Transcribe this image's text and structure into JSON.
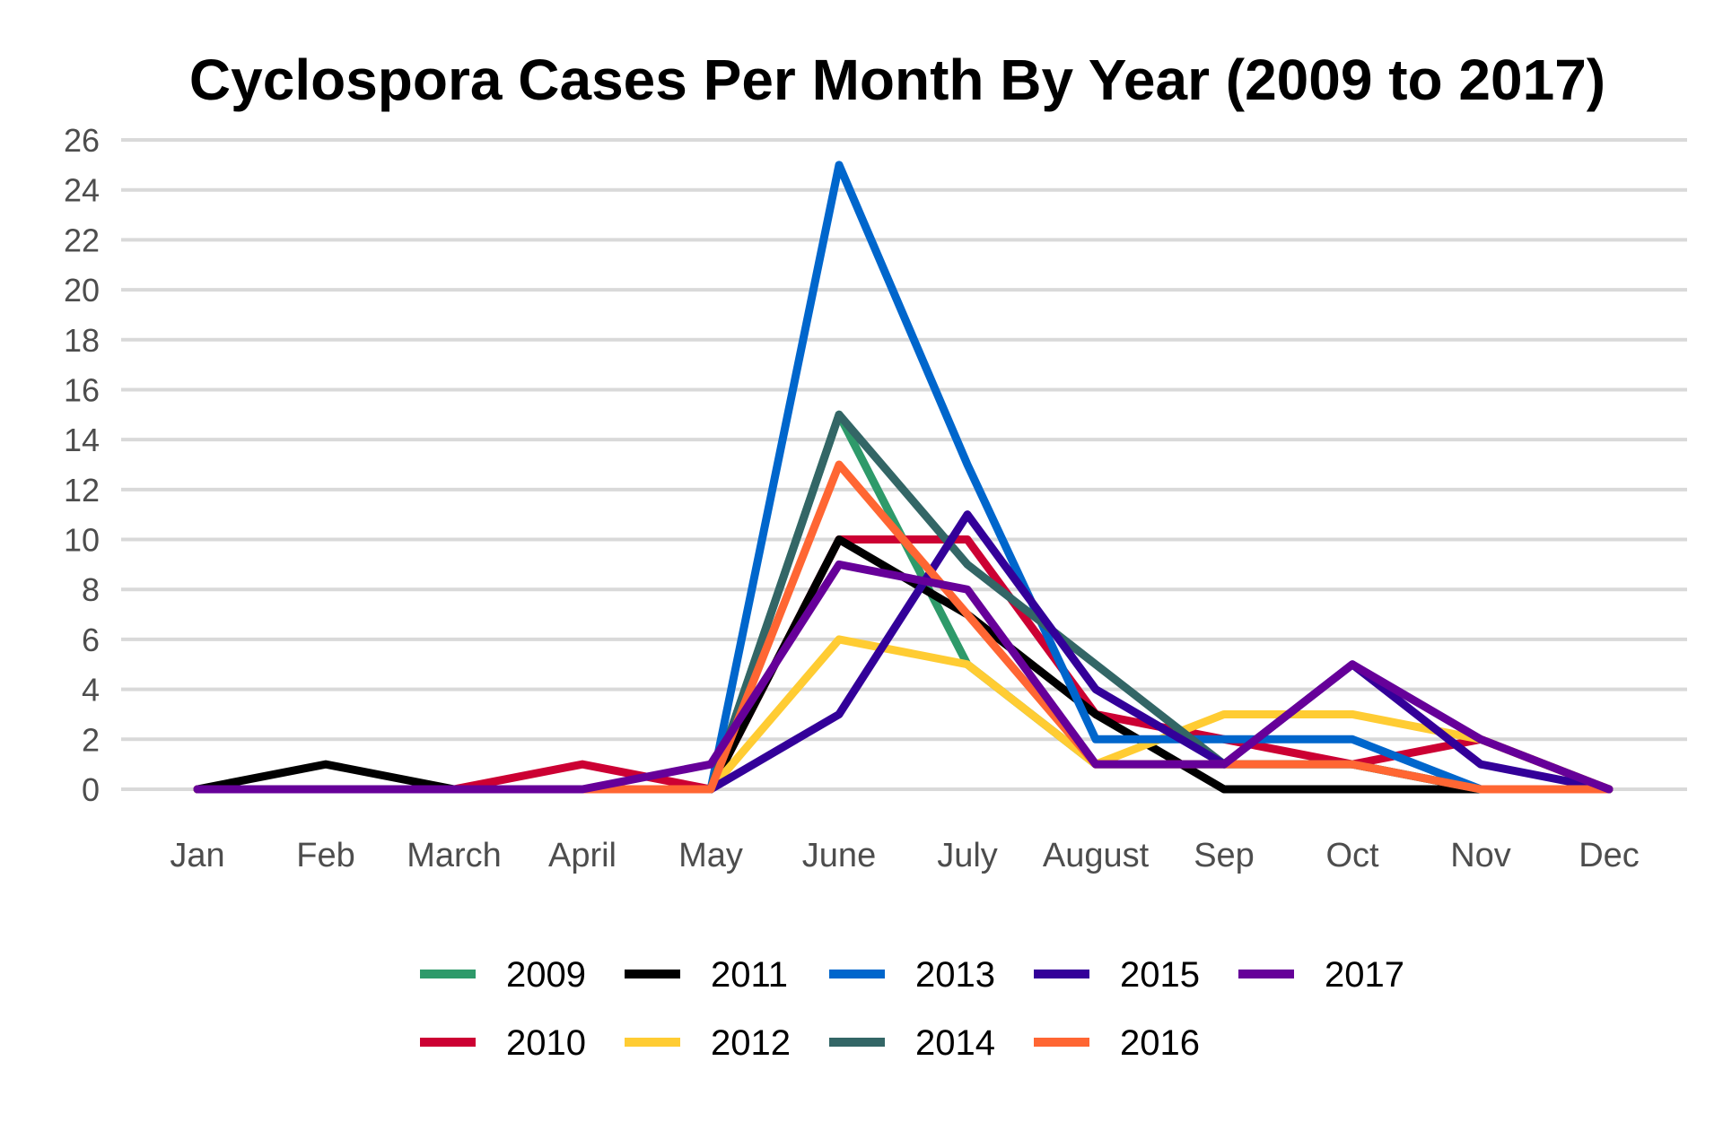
{
  "chart_data": {
    "type": "line",
    "title": "Cyclospora Cases Per Month By Year (2009 to 2017)",
    "xlabel": "",
    "ylabel": "",
    "categories": [
      "Jan",
      "Feb",
      "March",
      "April",
      "May",
      "June",
      "July",
      "August",
      "Sep",
      "Oct",
      "Nov",
      "Dec"
    ],
    "ylim": [
      0,
      26
    ],
    "yticks": [
      "0",
      "2",
      "4",
      "6",
      "8",
      "10",
      "12",
      "14",
      "16",
      "18",
      "20",
      "22",
      "24",
      "26"
    ],
    "grid": true,
    "legend_position": "bottom",
    "series": [
      {
        "name": "2009",
        "color": "#2e9a6a",
        "values": [
          0,
          0,
          0,
          0,
          0,
          15,
          5,
          1,
          1,
          1,
          0,
          0
        ]
      },
      {
        "name": "2010",
        "color": "#cc0033",
        "values": [
          0,
          0,
          0,
          1,
          0,
          10,
          10,
          3,
          2,
          1,
          2,
          0
        ]
      },
      {
        "name": "2011",
        "color": "#000000",
        "values": [
          0,
          1,
          0,
          0,
          0,
          10,
          7,
          3,
          0,
          0,
          0,
          0
        ]
      },
      {
        "name": "2012",
        "color": "#ffcc33",
        "values": [
          0,
          0,
          0,
          0,
          0,
          6,
          5,
          1,
          3,
          3,
          2,
          0
        ]
      },
      {
        "name": "2013",
        "color": "#0066cc",
        "values": [
          0,
          0,
          0,
          0,
          0,
          25,
          13,
          2,
          2,
          2,
          0,
          0
        ]
      },
      {
        "name": "2014",
        "color": "#336666",
        "values": [
          0,
          0,
          0,
          0,
          0,
          15,
          9,
          5,
          1,
          1,
          0,
          0
        ]
      },
      {
        "name": "2015",
        "color": "#330099",
        "values": [
          0,
          0,
          0,
          0,
          0,
          3,
          11,
          4,
          1,
          5,
          1,
          0
        ]
      },
      {
        "name": "2016",
        "color": "#ff6633",
        "values": [
          0,
          0,
          0,
          0,
          0,
          13,
          7,
          1,
          1,
          1,
          0,
          0
        ]
      },
      {
        "name": "2017",
        "color": "#660099",
        "values": [
          0,
          0,
          0,
          0,
          1,
          9,
          8,
          1,
          1,
          5,
          2,
          0
        ]
      }
    ]
  }
}
